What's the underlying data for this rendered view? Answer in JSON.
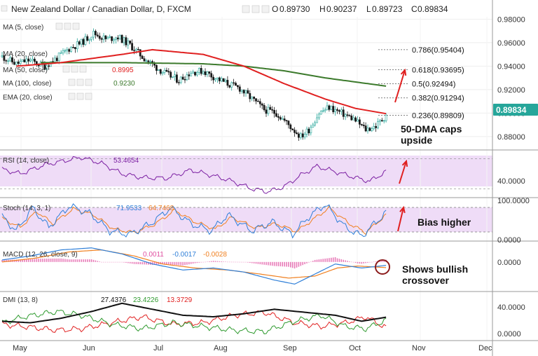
{
  "header": {
    "title": "New Zealand Dollar / Canadian Dollar, D, FXCM",
    "ohlc": [
      {
        "label": "O",
        "value": "0.89730"
      },
      {
        "label": "H",
        "value": "0.90237"
      },
      {
        "label": "L",
        "value": "0.89723"
      },
      {
        "label": "C",
        "value": "0.89834"
      }
    ]
  },
  "legends": {
    "ma5": "MA (5, close)",
    "ma20": "MA (20, close)",
    "ma50": "MA (50, close)",
    "ma50_val": "0.8995",
    "ma100": "MA (100, close)",
    "ma100_val": "0.9230",
    "ema20": "EMA (20, close)",
    "rsi": "RSI (14, close)",
    "rsi_val": "53.4654",
    "stoch": "Stoch (14, 3, 1)",
    "stoch_k": "71.9533",
    "stoch_d": "64.7468",
    "macd": "MACD (12, 26, close, 9)",
    "macd_hist": "0.0011",
    "macd_line": "-0.0017",
    "macd_signal": "-0.0028",
    "dmi": "DMI (13, 8)",
    "adx": "27.4376",
    "di_plus": "23.4226",
    "di_minus": "13.3729"
  },
  "price_axis": {
    "ticks": [
      "0.98000",
      "0.96000",
      "0.94000",
      "0.92000",
      "0.90000",
      "0.88000"
    ],
    "last_price": "0.89834",
    "last_color": "#26a69a"
  },
  "rsi_axis": [
    "40.0000"
  ],
  "stoch_axis": [
    "100.0000",
    "0.0000"
  ],
  "macd_axis": [
    "0.0000"
  ],
  "dmi_axis": [
    "40.0000",
    "0.0000"
  ],
  "time_axis": [
    "May",
    "Jun",
    "Jul",
    "Aug",
    "Sep",
    "Oct",
    "Nov",
    "Dec"
  ],
  "fib_levels": [
    {
      "label": "0.786(0.95404)",
      "price": 0.95404
    },
    {
      "label": "0.618(0.93695)",
      "price": 0.93695
    },
    {
      "label": "0.5(0.92494)",
      "price": 0.92494,
      "color": "#2e8b2e"
    },
    {
      "label": "0.382(0.91294)",
      "price": 0.91294
    },
    {
      "label": "0.236(0.89809)",
      "price": 0.89809
    }
  ],
  "annotations": {
    "caps_line1": "50-DMA caps",
    "caps_line2": "upside",
    "bias": "Bias higher",
    "cross_line1": "Shows bullish",
    "cross_line2": "crossover"
  },
  "colors": {
    "up": "#26a69a",
    "down": "#1a1a1a",
    "ma50": "#e02020",
    "ma100": "#3c7a2c",
    "rsi": "#7b1fa2",
    "rsi_band": "#efdcf7",
    "stoch_k": "#2f7fd8",
    "stoch_d": "#f08020",
    "macd_line": "#2f7fd8",
    "macd_signal": "#f08020",
    "macd_hist": "#e04fa0",
    "adx": "#111111",
    "di_plus": "#2e9a2e",
    "di_minus": "#e02020",
    "arrow": "#e02020"
  },
  "chart_data": {
    "type": "candlestick",
    "title": "New Zealand Dollar / Canadian Dollar, D, FXCM",
    "price_range": [
      0.871,
      0.982
    ],
    "x": [
      "2017-05-02",
      "2017-10-17"
    ],
    "price_waypoints": [
      [
        0.948,
        1
      ],
      [
        0.942,
        8
      ],
      [
        0.945,
        14
      ],
      [
        0.94,
        22
      ],
      [
        0.947,
        28
      ],
      [
        0.955,
        34
      ],
      [
        0.96,
        40
      ],
      [
        0.968,
        46
      ],
      [
        0.963,
        52
      ],
      [
        0.965,
        58
      ],
      [
        0.958,
        64
      ],
      [
        0.948,
        70
      ],
      [
        0.94,
        76
      ],
      [
        0.933,
        82
      ],
      [
        0.928,
        88
      ],
      [
        0.935,
        94
      ],
      [
        0.936,
        100
      ],
      [
        0.93,
        106
      ],
      [
        0.925,
        112
      ],
      [
        0.921,
        118
      ],
      [
        0.912,
        124
      ],
      [
        0.903,
        130
      ],
      [
        0.9,
        136
      ],
      [
        0.89,
        142
      ],
      [
        0.88,
        148
      ],
      [
        0.886,
        152
      ],
      [
        0.9,
        157
      ],
      [
        0.905,
        162
      ],
      [
        0.9,
        168
      ],
      [
        0.895,
        174
      ],
      [
        0.886,
        180
      ],
      [
        0.889,
        185
      ],
      [
        0.898,
        190
      ]
    ],
    "ma50_waypoints": [
      [
        0.94,
        8
      ],
      [
        0.943,
        30
      ],
      [
        0.95,
        60
      ],
      [
        0.954,
        75
      ],
      [
        0.95,
        100
      ],
      [
        0.94,
        120
      ],
      [
        0.925,
        140
      ],
      [
        0.912,
        160
      ],
      [
        0.904,
        175
      ],
      [
        0.8995,
        190
      ]
    ],
    "ma100_waypoints": [
      [
        0.943,
        20
      ],
      [
        0.943,
        60
      ],
      [
        0.942,
        100
      ],
      [
        0.94,
        120
      ],
      [
        0.936,
        140
      ],
      [
        0.93,
        160
      ],
      [
        0.923,
        190
      ]
    ],
    "rsi_range": [
      20,
      80
    ],
    "rsi_waypoints": [
      [
        56,
        1
      ],
      [
        50,
        10
      ],
      [
        62,
        22
      ],
      [
        72,
        40
      ],
      [
        64,
        50
      ],
      [
        50,
        60
      ],
      [
        45,
        70
      ],
      [
        44,
        82
      ],
      [
        55,
        94
      ],
      [
        48,
        104
      ],
      [
        42,
        112
      ],
      [
        30,
        124
      ],
      [
        26,
        132
      ],
      [
        33,
        140
      ],
      [
        48,
        148
      ],
      [
        60,
        156
      ],
      [
        52,
        166
      ],
      [
        44,
        176
      ],
      [
        40,
        182
      ],
      [
        53,
        190
      ]
    ],
    "stoch_range": [
      -5,
      110
    ],
    "stoch_k_waypoints": [
      [
        60,
        1
      ],
      [
        20,
        8
      ],
      [
        85,
        16
      ],
      [
        30,
        24
      ],
      [
        90,
        34
      ],
      [
        70,
        44
      ],
      [
        20,
        54
      ],
      [
        10,
        64
      ],
      [
        40,
        74
      ],
      [
        85,
        84
      ],
      [
        40,
        94
      ],
      [
        20,
        104
      ],
      [
        65,
        112
      ],
      [
        20,
        124
      ],
      [
        45,
        134
      ],
      [
        10,
        144
      ],
      [
        60,
        152
      ],
      [
        95,
        160
      ],
      [
        30,
        170
      ],
      [
        5,
        178
      ],
      [
        72,
        190
      ]
    ],
    "stoch_d_waypoints": [
      [
        55,
        1
      ],
      [
        30,
        10
      ],
      [
        75,
        18
      ],
      [
        40,
        26
      ],
      [
        82,
        36
      ],
      [
        65,
        46
      ],
      [
        25,
        56
      ],
      [
        15,
        66
      ],
      [
        38,
        76
      ],
      [
        78,
        86
      ],
      [
        45,
        96
      ],
      [
        25,
        106
      ],
      [
        58,
        114
      ],
      [
        28,
        126
      ],
      [
        40,
        136
      ],
      [
        18,
        146
      ],
      [
        52,
        154
      ],
      [
        85,
        162
      ],
      [
        40,
        172
      ],
      [
        15,
        180
      ],
      [
        65,
        190
      ]
    ],
    "macd_range": [
      -0.014,
      0.009
    ],
    "macd_line_waypoints": [
      [
        0.001,
        1
      ],
      [
        0.003,
        15
      ],
      [
        0.006,
        30
      ],
      [
        0.007,
        45
      ],
      [
        0.004,
        60
      ],
      [
        -0.001,
        75
      ],
      [
        -0.004,
        90
      ],
      [
        -0.003,
        105
      ],
      [
        -0.005,
        120
      ],
      [
        -0.009,
        135
      ],
      [
        -0.011,
        145
      ],
      [
        -0.006,
        155
      ],
      [
        -0.001,
        165
      ],
      [
        -0.003,
        178
      ],
      [
        -0.0017,
        190
      ]
    ],
    "macd_signal_waypoints": [
      [
        0.0,
        1
      ],
      [
        0.002,
        18
      ],
      [
        0.005,
        34
      ],
      [
        0.006,
        50
      ],
      [
        0.003,
        66
      ],
      [
        -0.001,
        80
      ],
      [
        -0.003,
        96
      ],
      [
        -0.004,
        112
      ],
      [
        -0.006,
        128
      ],
      [
        -0.008,
        142
      ],
      [
        -0.007,
        155
      ],
      [
        -0.003,
        166
      ],
      [
        -0.002,
        176
      ],
      [
        -0.0028,
        190
      ]
    ],
    "dmi_range": [
      -2,
      58
    ],
    "adx_waypoints": [
      [
        22,
        1
      ],
      [
        20,
        15
      ],
      [
        26,
        30
      ],
      [
        35,
        45
      ],
      [
        46,
        60
      ],
      [
        38,
        75
      ],
      [
        30,
        90
      ],
      [
        28,
        105
      ],
      [
        32,
        120
      ],
      [
        38,
        135
      ],
      [
        34,
        150
      ],
      [
        30,
        165
      ],
      [
        22,
        178
      ],
      [
        27.4,
        190
      ]
    ],
    "di_plus_waypoints": [
      [
        20,
        1
      ],
      [
        28,
        12
      ],
      [
        35,
        28
      ],
      [
        30,
        40
      ],
      [
        18,
        55
      ],
      [
        12,
        70
      ],
      [
        20,
        85
      ],
      [
        15,
        100
      ],
      [
        10,
        115
      ],
      [
        8,
        130
      ],
      [
        22,
        145
      ],
      [
        30,
        158
      ],
      [
        15,
        170
      ],
      [
        12,
        180
      ],
      [
        23.4,
        190
      ]
    ],
    "di_minus_waypoints": [
      [
        18,
        1
      ],
      [
        15,
        12
      ],
      [
        10,
        28
      ],
      [
        12,
        40
      ],
      [
        20,
        55
      ],
      [
        28,
        70
      ],
      [
        18,
        85
      ],
      [
        20,
        100
      ],
      [
        30,
        115
      ],
      [
        34,
        130
      ],
      [
        20,
        145
      ],
      [
        15,
        158
      ],
      [
        20,
        170
      ],
      [
        28,
        180
      ],
      [
        13.4,
        190
      ]
    ]
  }
}
